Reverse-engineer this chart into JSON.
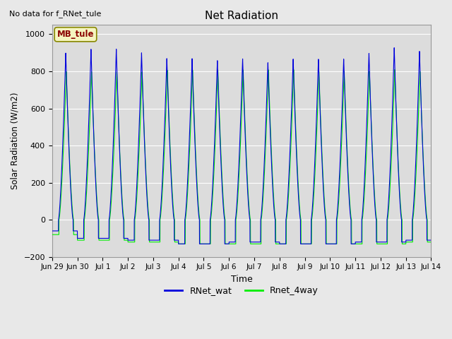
{
  "title": "Net Radiation",
  "xlabel": "Time",
  "ylabel": "Solar Radiation (W/m2)",
  "no_data_text": "No data for f_RNet_tule",
  "annotation_text": "MB_tule",
  "ylim": [
    -200,
    1050
  ],
  "yticks": [
    -200,
    0,
    200,
    400,
    600,
    800,
    1000
  ],
  "bg_color": "#e8e8e8",
  "plot_bg_color": "#dcdcdc",
  "line_blue": "#0000dd",
  "line_green": "#00ee00",
  "legend_labels": [
    "RNet_wat",
    "Rnet_4way"
  ],
  "n_days": 15,
  "day_labels": [
    "Jun 29",
    "Jun 30",
    "Jul 1",
    "Jul 2",
    "Jul 3",
    "Jul 4",
    "Jul 5",
    "Jul 6",
    "Jul 7",
    "Jul 8",
    "Jul 9",
    "Jul 10",
    "Jul 11",
    "Jul 12",
    "Jul 13",
    "Jul 14"
  ],
  "peaks_blue": [
    900,
    920,
    920,
    900,
    870,
    870,
    860,
    870,
    850,
    870,
    870,
    870,
    900,
    930,
    910
  ],
  "peaks_green": [
    800,
    800,
    800,
    800,
    810,
    810,
    810,
    810,
    810,
    810,
    800,
    800,
    800,
    810,
    800
  ],
  "night_values_blue": [
    -60,
    -100,
    -100,
    -110,
    -110,
    -130,
    -130,
    -120,
    -120,
    -130,
    -130,
    -130,
    -120,
    -120,
    -110
  ],
  "night_values_green": [
    -80,
    -110,
    -110,
    -120,
    -120,
    -130,
    -130,
    -130,
    -130,
    -130,
    -130,
    -130,
    -130,
    -130,
    -120
  ]
}
